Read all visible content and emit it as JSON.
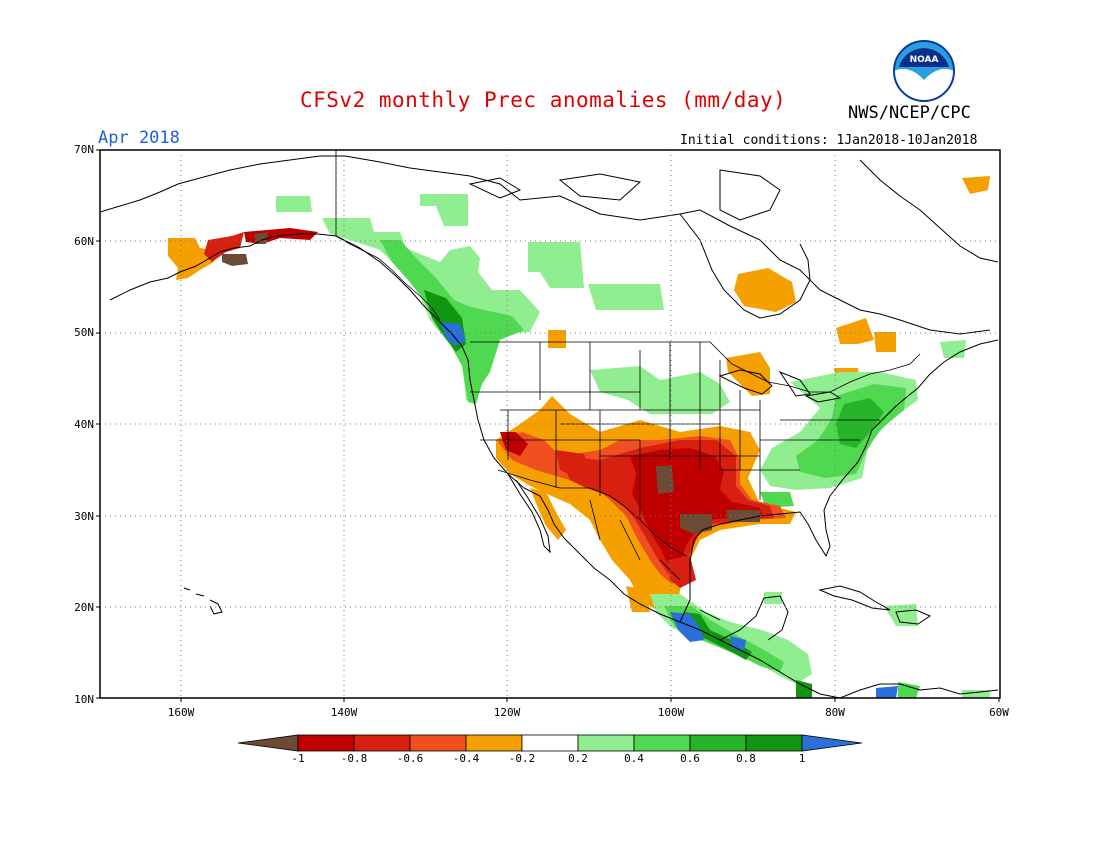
{
  "header": {
    "title": "CFSv2 monthly Prec anomalies (mm/day)",
    "month": "Apr 2018",
    "initial_conditions": "Initial conditions: 1Jan2018-10Jan2018",
    "agency": "NWS/NCEP/CPC",
    "logo_text": "NOAA"
  },
  "axes": {
    "lat_ticks": [
      "70N",
      "60N",
      "50N",
      "40N",
      "30N",
      "20N",
      "10N"
    ],
    "lon_ticks": [
      "160W",
      "140W",
      "120W",
      "100W",
      "80W",
      "60W"
    ]
  },
  "colorbar": {
    "labels": [
      "-1",
      "-0.8",
      "-0.6",
      "-0.4",
      "-0.2",
      "0.2",
      "0.4",
      "0.6",
      "0.8",
      "1"
    ],
    "colors": [
      "#6b4a36",
      "#c00000",
      "#d82010",
      "#f05020",
      "#f5a000",
      "#ffffff",
      "#90ee90",
      "#50d850",
      "#28b428",
      "#109610",
      "#2a70d8"
    ]
  },
  "map": {
    "lon_range": [
      -172,
      -60
    ],
    "lat_range": [
      10,
      70
    ],
    "anomaly_colors": {
      "brown": "#6b4a36",
      "darkred": "#c00000",
      "red": "#d82010",
      "orangered": "#f05020",
      "orange": "#f5a000",
      "lightgreen": "#90ee90",
      "green": "#50d850",
      "midgreen": "#28b428",
      "darkgreen": "#109610",
      "blue": "#2a70d8"
    }
  }
}
